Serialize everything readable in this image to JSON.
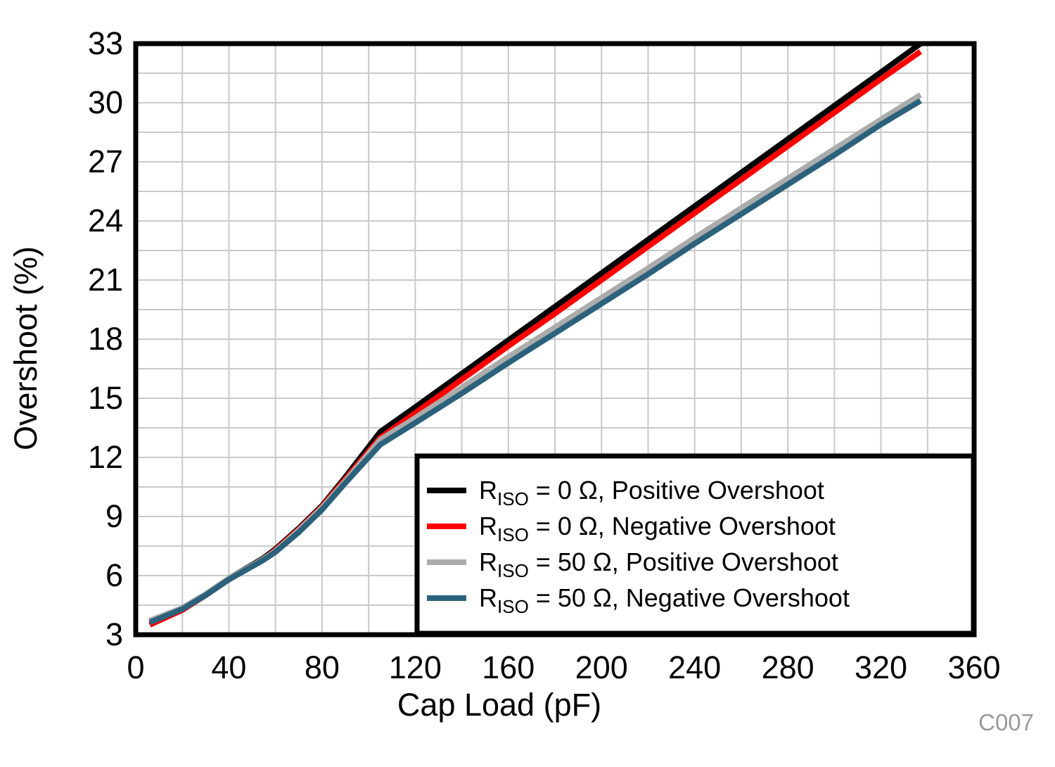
{
  "figure": {
    "code_label": "C007"
  },
  "chart_data": {
    "type": "line",
    "title": "",
    "xlabel": "Cap Load (pF)",
    "ylabel": "Overshoot (%)",
    "xlim": [
      0,
      360
    ],
    "ylim": [
      3,
      33
    ],
    "x_tick_labels": [
      0,
      40,
      80,
      120,
      160,
      200,
      240,
      280,
      320,
      360
    ],
    "y_tick_labels": [
      3,
      6,
      9,
      12,
      15,
      18,
      21,
      24,
      27,
      30,
      33
    ],
    "x_grid_step": 20,
    "y_grid_step": 1.5,
    "grid": true,
    "grid_color": "#c9c9c9",
    "plot_border_color": "#000000",
    "legend_position": "lower right",
    "x": [
      6,
      20,
      30,
      40,
      55,
      60,
      70,
      80,
      90,
      105,
      120,
      140,
      160,
      180,
      200,
      220,
      240,
      260,
      280,
      300,
      320,
      337
    ],
    "series": [
      {
        "id": "riso-0-positive-overshoot",
        "name": "RISO = 0 Ω, Positive Overshoot",
        "label_r": "R",
        "label_sub": "ISO",
        "label_rest": " = 0 Ω, Positive Overshoot",
        "color": "#000000",
        "values": [
          3.7,
          4.35,
          5.05,
          5.85,
          6.9,
          7.35,
          8.4,
          9.55,
          11.0,
          13.3,
          14.55,
          16.25,
          17.95,
          19.65,
          21.35,
          23.05,
          24.75,
          26.45,
          28.15,
          29.85,
          31.55,
          33.0
        ]
      },
      {
        "id": "riso-0-negative-overshoot",
        "name": "RISO = 0 Ω, Negative Overshoot",
        "label_r": "R",
        "label_sub": "ISO",
        "label_rest": " = 0 Ω, Negative Overshoot",
        "color": "#ff0000",
        "values": [
          3.5,
          4.25,
          5.0,
          5.8,
          6.85,
          7.3,
          8.35,
          9.5,
          10.9,
          13.0,
          14.25,
          15.95,
          17.65,
          19.3,
          21.0,
          22.7,
          24.4,
          26.1,
          27.8,
          29.5,
          31.2,
          32.6
        ]
      },
      {
        "id": "riso-50-positive-overshoot",
        "name": "RISO = 50 Ω, Positive Overshoot",
        "label_r": "R",
        "label_sub": "ISO",
        "label_rest": " = 50 Ω, Positive Overshoot",
        "color": "#ababab",
        "values": [
          3.7,
          4.35,
          5.05,
          5.85,
          6.85,
          7.25,
          8.3,
          9.45,
          10.8,
          12.9,
          14.0,
          15.55,
          17.1,
          18.6,
          20.1,
          21.6,
          23.15,
          24.65,
          26.15,
          27.65,
          29.15,
          30.4
        ]
      },
      {
        "id": "riso-50-negative-overshoot",
        "name": "RISO = 50 Ω, Negative Overshoot",
        "label_r": "R",
        "label_sub": "ISO",
        "label_rest": " = 50 Ω, Negative Overshoot",
        "color": "#2c617b",
        "values": [
          3.62,
          4.3,
          5.0,
          5.8,
          6.8,
          7.2,
          8.2,
          9.35,
          10.7,
          12.65,
          13.75,
          15.25,
          16.8,
          18.3,
          19.8,
          21.3,
          22.85,
          24.35,
          25.85,
          27.35,
          28.9,
          30.1
        ]
      }
    ]
  }
}
